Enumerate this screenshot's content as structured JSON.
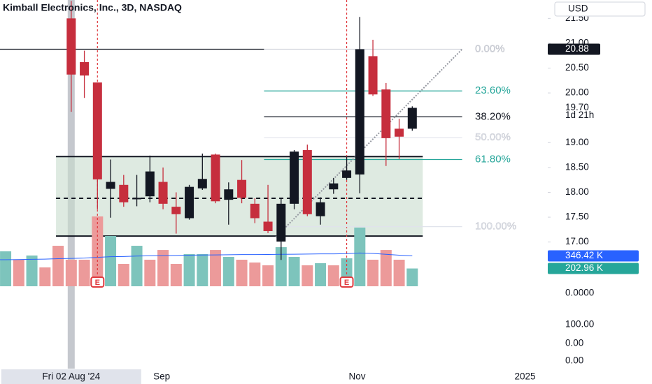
{
  "chart_data": {
    "type": "candlestick",
    "title": "Kimball Electronics, Inc., 3D, NASDAQ",
    "currency": "USD",
    "ylim": [
      16.04,
      21.87
    ],
    "yticks": [
      {
        "value": 21.5,
        "label": "21.50"
      },
      {
        "value": 21,
        "label": "21.00"
      },
      {
        "value": 20.5,
        "label": "20.50"
      },
      {
        "value": 20,
        "label": "20.00"
      },
      {
        "value": 19,
        "label": "19.00"
      },
      {
        "value": 18.5,
        "label": "18.50"
      },
      {
        "value": 18,
        "label": "18.00"
      },
      {
        "value": 17.5,
        "label": "17.50"
      },
      {
        "value": 17,
        "label": "17.00"
      }
    ],
    "last_price": {
      "value": 19.7,
      "label": "19.70"
    },
    "countdown": "1d 21h",
    "xlim": [
      -0.43,
      41.33
    ],
    "xticks": [
      {
        "value": 11.9,
        "label": "Sep"
      },
      {
        "value": 26.8,
        "label": "Nov"
      },
      {
        "value": 39.6,
        "label": "2025"
      }
    ],
    "crosshair": {
      "value": 5,
      "label": "Fri 02 Aug '24"
    },
    "up_color": "#131722",
    "down_color": "#c62e3d",
    "open": [
      null,
      null,
      null,
      null,
      null,
      21.5,
      20.62,
      20.21,
      18.07,
      18.15,
      17.86,
      17.92,
      18.21,
      17.71,
      17.48,
      18.08,
      18.76,
      17.85,
      18.25,
      17.77,
      17.41,
      17.01,
      17.77,
      18.85,
      17.52,
      18.06,
      18.29,
      18.36,
      20.74,
      20.07,
      19.28,
      19.28
    ],
    "high": [
      null,
      null,
      null,
      null,
      null,
      21.85,
      20.85,
      20.21,
      18.66,
      18.35,
      18.35,
      18.74,
      18.5,
      18.0,
      18.15,
      18.78,
      18.78,
      18.2,
      18.65,
      17.88,
      18.15,
      17.88,
      18.85,
      18.96,
      17.9,
      18.29,
      18.72,
      21.53,
      21.07,
      20.2,
      19.48,
      19.73
    ],
    "low": [
      null,
      null,
      null,
      null,
      null,
      19.62,
      19.9,
      17.66,
      17.49,
      17.71,
      17.72,
      17.8,
      17.66,
      17.17,
      17.45,
      18.05,
      17.78,
      17.35,
      17.78,
      17.38,
      17.18,
      16.64,
      17.66,
      17.52,
      17.35,
      17.97,
      18.25,
      17.98,
      19.94,
      18.53,
      18.67,
      19.24
    ],
    "close": [
      null,
      null,
      null,
      null,
      null,
      20.37,
      20.35,
      18.26,
      18.21,
      17.8,
      17.89,
      18.42,
      17.77,
      17.56,
      18.11,
      18.27,
      17.82,
      18.06,
      17.89,
      17.48,
      17.22,
      17.77,
      18.82,
      17.56,
      17.8,
      18.18,
      18.44,
      20.88,
      19.97,
      19.09,
      19.12,
      19.7
    ],
    "volume": [
      399,
      303,
      351,
      215,
      462,
      303,
      303,
      797,
      574,
      255,
      462,
      303,
      414,
      255,
      367,
      367,
      414,
      335,
      303,
      271,
      239,
      446,
      335,
      239,
      263,
      239,
      319,
      670,
      303,
      414,
      303,
      202.96
    ],
    "volume_colors": [
      "#7dc4bc",
      "#ec9a9a",
      "#7dc4bc",
      "#ec9a9a",
      "#ec9a9a",
      "#ec9a9a",
      "#ec9a9a",
      "#ec9a9a",
      "#7dc4bc",
      "#ec9a9a",
      "#7dc4bc",
      "#ec9a9a",
      "#ec9a9a",
      "#ec9a9a",
      "#7dc4bc",
      "#7dc4bc",
      "#ec9a9a",
      "#7dc4bc",
      "#ec9a9a",
      "#ec9a9a",
      "#ec9a9a",
      "#7dc4bc",
      "#7dc4bc",
      "#ec9a9a",
      "#7dc4bc",
      "#ec9a9a",
      "#7dc4bc",
      "#7dc4bc",
      "#ec9a9a",
      "#ec9a9a",
      "#ec9a9a",
      "#7dc4bc"
    ],
    "volume_label": "202.96 K",
    "volume_ma": [
      303,
      305,
      308,
      310,
      315,
      318,
      322,
      330,
      338,
      340,
      345,
      348,
      350,
      352,
      355,
      357,
      358,
      360,
      362,
      362,
      363,
      365,
      366,
      368,
      370,
      370,
      372,
      380,
      375,
      365,
      355,
      346.42
    ],
    "volume_ma_label": "346.42 K",
    "volume_ma_color": "#2962ff",
    "volume_label_color": "#26a69a",
    "volume_lim": [
      0,
      3268
    ],
    "earnings": [
      7,
      26
    ],
    "earnings_label": "E",
    "earnings_color": "#e0393e",
    "hline": {
      "price": 20.88,
      "x": [
        -0.43,
        19.7
      ],
      "color": "#131722"
    },
    "fib": {
      "x": [
        19.7,
        34.8
      ],
      "levels": [
        {
          "value": 0,
          "label": "0.00%",
          "price": 20.88,
          "color": "#d1d4dc"
        },
        {
          "value": 23.6,
          "label": "23.60%",
          "price": 20.04,
          "color": "#26a69a"
        },
        {
          "value": 38.2,
          "label": "38.20%",
          "price": 19.52,
          "color": "#131722"
        },
        {
          "value": 50,
          "label": "50.00%",
          "price": 19.1,
          "color": "#e0e3eb"
        },
        {
          "value": 61.8,
          "label": "61.80%",
          "price": 18.66,
          "color": "#26a69a"
        },
        {
          "value": 100,
          "label": "100.00%",
          "price": 17.31,
          "color": "#e0e3eb"
        }
      ]
    },
    "box": {
      "x": [
        3.84,
        31.8
      ],
      "top": 18.72,
      "bottom": 17.12,
      "mid": 17.88,
      "color": "#c8dccd"
    },
    "trend": {
      "x": [
        20.6,
        34.8
      ],
      "y": [
        17.1,
        20.88
      ]
    },
    "pane_ticks": [
      {
        "value": 0,
        "label": "0.0000"
      },
      {
        "value": 100,
        "label": "100.00"
      },
      {
        "value": 0,
        "label": "0.00"
      },
      {
        "value": 0,
        "label": "0.00"
      }
    ]
  }
}
